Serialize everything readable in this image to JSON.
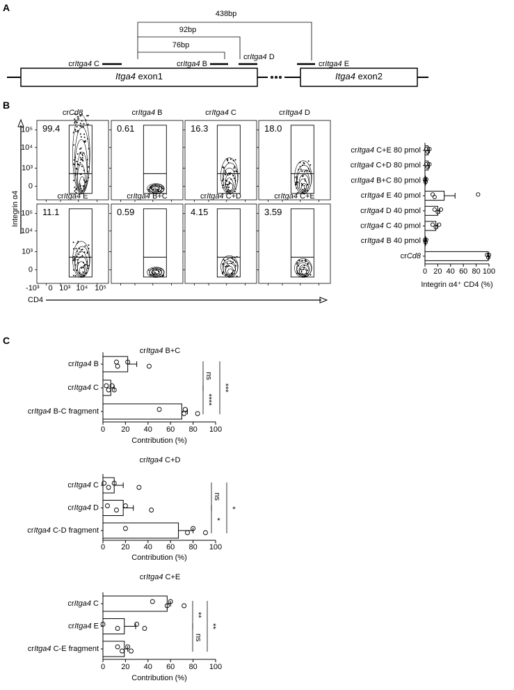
{
  "panel_a": {
    "label": "A",
    "exons": [
      "Itga4 exon1",
      "Itga4 exon2"
    ],
    "guides": [
      "crItga4 C",
      "crItga4 B",
      "crItga4 D",
      "crItga4 E"
    ],
    "distances": [
      "76bp",
      "92bp",
      "438bp"
    ]
  },
  "panel_b": {
    "label": "B",
    "y_axis_label": "Integrin α4",
    "x_axis_label": "CD4",
    "y_ticks": [
      "10⁵",
      "10⁴",
      "10³",
      "0"
    ],
    "x_ticks": [
      "-10³",
      "0",
      "10³",
      "10⁴",
      "10⁵"
    ],
    "plots": [
      {
        "title": "crCd8",
        "percent": "99.4"
      },
      {
        "title": "crItga4 B",
        "percent": "0.61"
      },
      {
        "title": "crItga4 C",
        "percent": "16.3"
      },
      {
        "title": "crItga4 D",
        "percent": "18.0"
      },
      {
        "title": "crItga4 E",
        "percent": "11.1"
      },
      {
        "title": "crItga4 B+C",
        "percent": "0.59"
      },
      {
        "title": "crItga4 C+D",
        "percent": "4.15"
      },
      {
        "title": "crItga4 C+E",
        "percent": "3.59"
      }
    ]
  },
  "panel_c": {
    "label": "C"
  },
  "chart_data": [
    {
      "type": "bar",
      "orientation": "horizontal",
      "color": "#000000",
      "x_label": "Integrin α4⁺ CD4 (%)",
      "categories": [
        "crItga4 C+E 80 pmol",
        "crItga4 C+D 80 pmol",
        "crItga4 B+C 80 pmol",
        "crItga4 E 40 pmol",
        "crItga4 D 40 pmol",
        "crItga4 C 40 pmol",
        "crItga4 B 40 pmol",
        "crCd8"
      ],
      "values": [
        5,
        5,
        1,
        30,
        20,
        17,
        1,
        99
      ],
      "errors": [
        2,
        2,
        0.5,
        17,
        3,
        3,
        0.5,
        1
      ],
      "points": [
        [
          2,
          4,
          7
        ],
        [
          2,
          4,
          7
        ],
        [
          0,
          1,
          2
        ],
        [
          12,
          15,
          83
        ],
        [
          15,
          20,
          25
        ],
        [
          12,
          17,
          22
        ],
        [
          0,
          1,
          2
        ],
        [
          97,
          99,
          100
        ]
      ],
      "xlim": [
        0,
        100
      ],
      "xticks": [
        0,
        20,
        40,
        60,
        80,
        100
      ]
    },
    {
      "type": "bar",
      "orientation": "horizontal",
      "color": "#000000",
      "title": "crItga4 B+C",
      "x_label": "Contribution (%)",
      "categories": [
        "crItga4 B",
        "crItga4 C",
        "crItga4 B-C fragment"
      ],
      "values": [
        22,
        7,
        70
      ],
      "errors": [
        8,
        3,
        5
      ],
      "points": [
        [
          12,
          13,
          22,
          41
        ],
        [
          3,
          5,
          8,
          10
        ],
        [
          50,
          72,
          73,
          84
        ]
      ],
      "significance": [
        "ns",
        "****",
        "***"
      ],
      "xlim": [
        0,
        100
      ],
      "xticks": [
        0,
        20,
        40,
        60,
        80,
        100
      ]
    },
    {
      "type": "bar",
      "orientation": "horizontal",
      "color": "#000000",
      "title": "crItga4 C+D",
      "x_label": "Contribution (%)",
      "categories": [
        "crItga4 C",
        "crItga4 D",
        "crItga4 C-D fragment"
      ],
      "values": [
        10,
        18,
        67
      ],
      "errors": [
        8,
        9,
        13
      ],
      "points": [
        [
          1,
          5,
          10,
          32
        ],
        [
          4,
          12,
          20,
          43
        ],
        [
          20,
          75,
          80,
          91
        ]
      ],
      "significance": [
        "ns",
        "*",
        "*"
      ],
      "xlim": [
        0,
        100
      ],
      "xticks": [
        0,
        20,
        40,
        60,
        80,
        100
      ]
    },
    {
      "type": "bar",
      "orientation": "horizontal",
      "color": "#000000",
      "title": "crItga4 C+E",
      "x_label": "Contribution (%)",
      "categories": [
        "crItga4 C",
        "crItga4 E",
        "crItga4 C-E fragment"
      ],
      "values": [
        57,
        19,
        19
      ],
      "errors": [
        3,
        10,
        3
      ],
      "points": [
        [
          44,
          57,
          60,
          72
        ],
        [
          0,
          13,
          30,
          37
        ],
        [
          13,
          17,
          22,
          25
        ]
      ],
      "significance": [
        "**",
        "ns",
        "**"
      ],
      "xlim": [
        0,
        100
      ],
      "xticks": [
        0,
        20,
        40,
        60,
        80,
        100
      ]
    }
  ]
}
